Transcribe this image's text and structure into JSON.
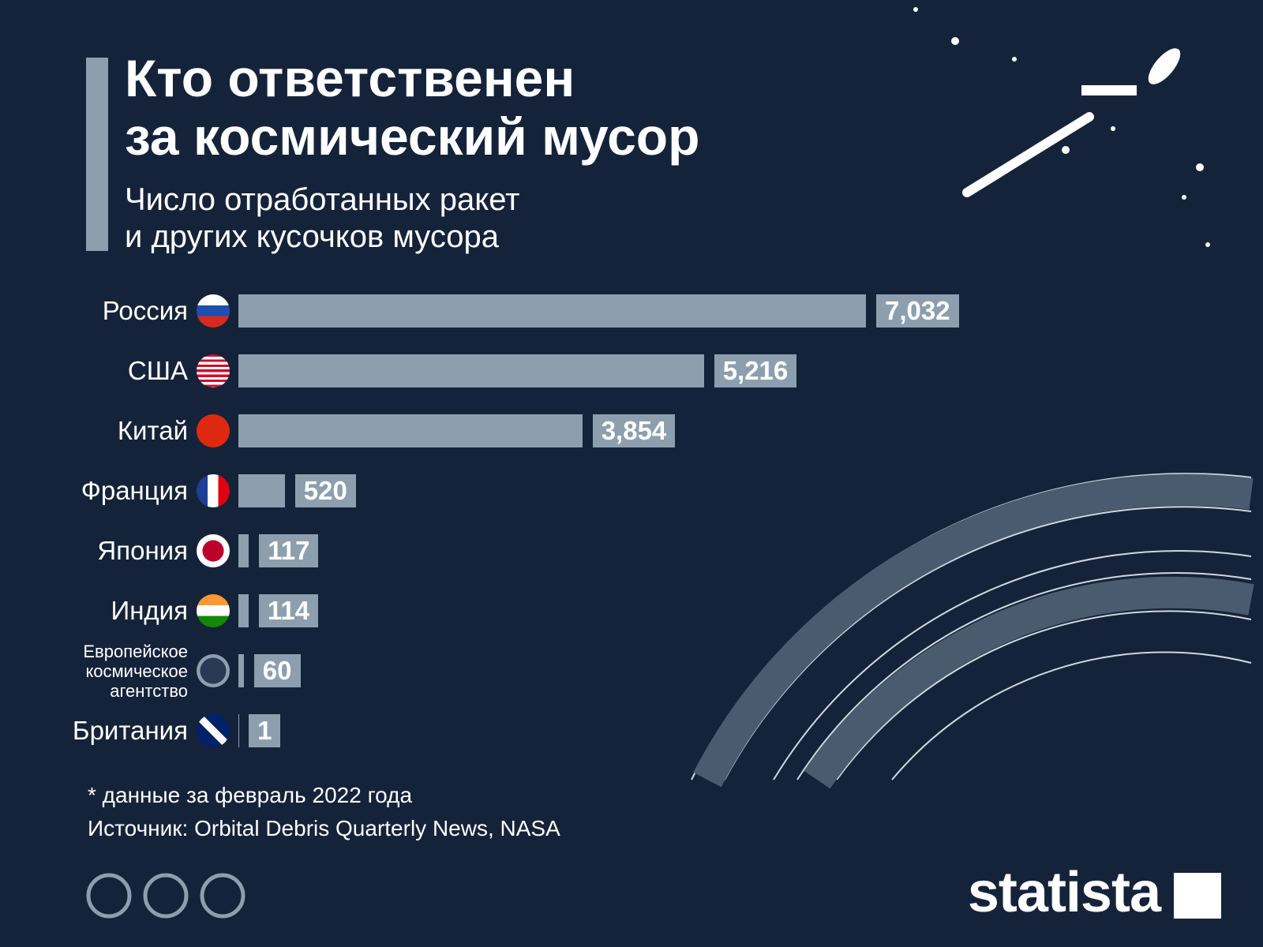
{
  "chart_data": {
    "type": "bar",
    "orientation": "horizontal",
    "title": "Кто ответственен\nза космический мусор",
    "subtitle": "Число отработанных ракет\nи других кусочков мусора",
    "categories": [
      "Россия",
      "США",
      "Китай",
      "Франция",
      "Япония",
      "Индия",
      "Европейское\nкосмическое\nагентство",
      "Британия"
    ],
    "values": [
      7032,
      5216,
      3854,
      520,
      117,
      114,
      60,
      1
    ],
    "value_labels": [
      "7,032",
      "5,216",
      "3,854",
      "520",
      "117",
      "114",
      "60",
      "1"
    ],
    "color": "#8d9fae",
    "note": "* данные за февраль 2022 года",
    "source": "Источник: Orbital Debris Quarterly News, NASA",
    "brand": "statista"
  }
}
